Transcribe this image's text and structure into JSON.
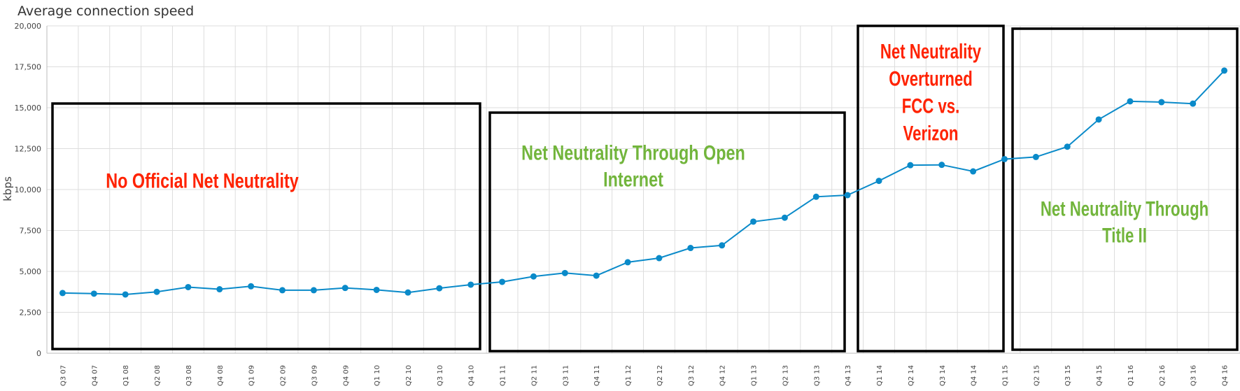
{
  "chart_data": {
    "type": "line",
    "title": "Average connection speed",
    "ylabel": "kbps",
    "xlabel": "",
    "ylim": [
      0,
      20000
    ],
    "yticks": [
      0,
      2500,
      5000,
      7500,
      10000,
      12500,
      15000,
      17500,
      20000
    ],
    "ytick_labels": [
      "0",
      "2,500",
      "5,000",
      "7,500",
      "10,000",
      "12,500",
      "15,000",
      "17,500",
      "20,000"
    ],
    "grid": true,
    "categories": [
      "Q3 07",
      "Q4 07",
      "Q1 08",
      "Q2 08",
      "Q3 08",
      "Q4 08",
      "Q1 09",
      "Q2 09",
      "Q3 09",
      "Q4 09",
      "Q1 10",
      "Q2 10",
      "Q3 10",
      "Q4 10",
      "Q1 11",
      "Q2 11",
      "Q3 11",
      "Q4 11",
      "Q1 12",
      "Q2 12",
      "Q3 12",
      "Q4 12",
      "Q1 13",
      "Q2 13",
      "Q3 13",
      "Q4 13",
      "Q1 14",
      "Q2 14",
      "Q3 14",
      "Q4 14",
      "Q1 15",
      "Q2 15",
      "Q3 15",
      "Q4 15",
      "Q1 16",
      "Q2 16",
      "Q3 16",
      "Q4 16"
    ],
    "series": [
      {
        "color": "#0a8ac9",
        "values": [
          3680,
          3640,
          3590,
          3750,
          4040,
          3910,
          4090,
          3850,
          3850,
          3990,
          3870,
          3710,
          3970,
          4190,
          4360,
          4690,
          4900,
          4740,
          5560,
          5810,
          6430,
          6590,
          8040,
          8280,
          9560,
          9660,
          10530,
          11490,
          11510,
          11110,
          11860,
          11990,
          12620,
          14280,
          15390,
          15340,
          15250,
          17270
        ]
      }
    ],
    "annotations": [
      {
        "lines": [
          "No Official Net Neutrality"
        ],
        "color": "#ff2200",
        "box": {
          "from": "Q3 07",
          "to": "Q4 10"
        }
      },
      {
        "lines": [
          "Net Neutrality Through Open",
          "Internet"
        ],
        "color": "#72b53c",
        "box": {
          "from": "Q1 11",
          "to": "Q4 13"
        }
      },
      {
        "lines": [
          "Net Neutrality",
          "Overturned",
          "FCC vs.",
          "Verizon"
        ],
        "color": "#ff2200",
        "box": {
          "from": "Q1 14",
          "to": "Q1 15"
        }
      },
      {
        "lines": [
          "Net Neutrality Through",
          "Title II"
        ],
        "color": "#72b53c",
        "box": {
          "from": "Q2 15",
          "to": "Q4 16"
        }
      }
    ]
  }
}
